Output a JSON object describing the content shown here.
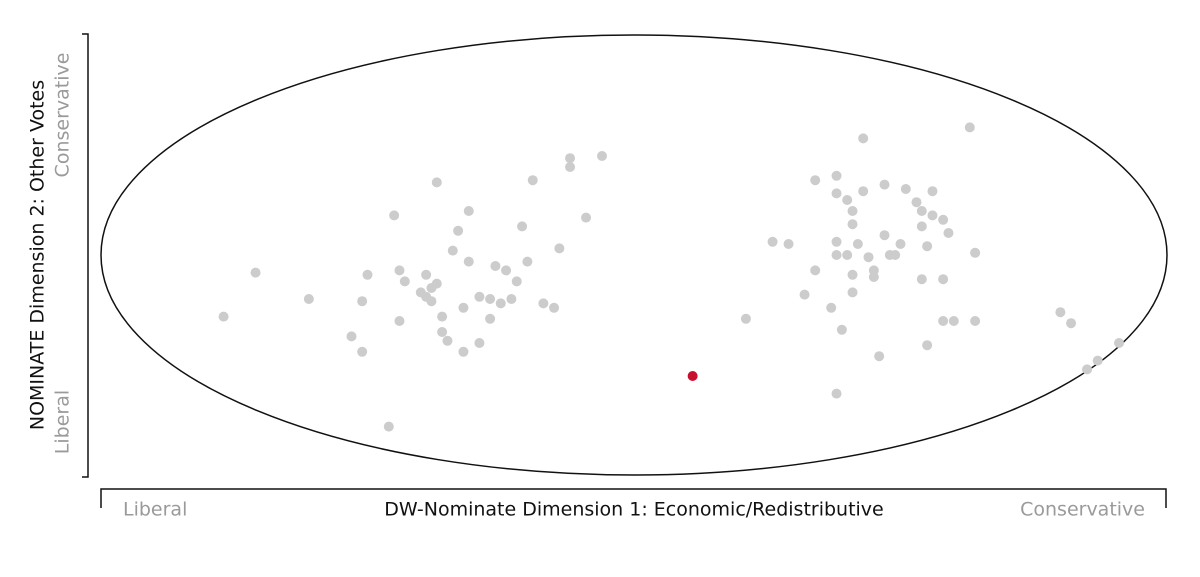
{
  "chart_data": {
    "type": "scatter",
    "x_label": "DW-Nominate Dimension 1: Economic/Redistributive",
    "x_low_label": "Liberal",
    "x_high_label": "Conservative",
    "y_label": "NOMINATE Dimension 2: Other Votes",
    "y_low_label": "Liberal",
    "y_high_label": "Conservative",
    "xlim": [
      -1,
      1
    ],
    "ylim": [
      -1,
      1
    ],
    "series": [
      {
        "color": "#cccccc",
        "x": [
          -0.77,
          -0.71,
          -0.61,
          -0.53,
          -0.51,
          -0.51,
          -0.5,
          -0.46,
          -0.45,
          -0.44,
          -0.44,
          -0.43,
          -0.4,
          -0.39,
          -0.39,
          -0.38,
          -0.37,
          -0.38,
          -0.37,
          -0.36,
          -0.35,
          -0.36,
          -0.34,
          -0.33,
          -0.32,
          -0.32,
          -0.31,
          -0.31,
          -0.29,
          -0.29,
          -0.27,
          -0.27,
          -0.26,
          -0.25,
          -0.24,
          -0.23,
          -0.22,
          -0.21,
          -0.2,
          -0.19,
          -0.17,
          -0.15,
          -0.14,
          -0.12,
          -0.12,
          -0.09,
          -0.06,
          0.21,
          0.26,
          0.29,
          0.32,
          0.34,
          0.34,
          0.38,
          0.38,
          0.37,
          0.38,
          0.38,
          0.39,
          0.4,
          0.4,
          0.41,
          0.41,
          0.41,
          0.41,
          0.42,
          0.43,
          0.43,
          0.44,
          0.45,
          0.45,
          0.46,
          0.47,
          0.47,
          0.48,
          0.49,
          0.5,
          0.51,
          0.53,
          0.54,
          0.54,
          0.54,
          0.55,
          0.55,
          0.56,
          0.56,
          0.58,
          0.58,
          0.58,
          0.59,
          0.6,
          0.63,
          0.64,
          0.64,
          0.38,
          0.8,
          0.82,
          0.85,
          0.87,
          0.91
        ],
        "y": [
          -0.28,
          -0.08,
          -0.2,
          -0.37,
          -0.44,
          -0.21,
          -0.09,
          -0.78,
          0.18,
          -0.3,
          -0.07,
          -0.12,
          -0.17,
          -0.09,
          -0.19,
          -0.15,
          -0.13,
          -0.21,
          0.33,
          -0.35,
          -0.39,
          -0.28,
          0.02,
          0.11,
          -0.44,
          -0.24,
          0.2,
          -0.03,
          -0.19,
          -0.4,
          -0.29,
          -0.2,
          -0.05,
          -0.22,
          -0.07,
          -0.2,
          -0.12,
          0.13,
          -0.03,
          0.34,
          -0.22,
          -0.24,
          0.03,
          0.4,
          0.44,
          0.17,
          0.45,
          -0.29,
          0.06,
          0.05,
          -0.18,
          -0.07,
          0.34,
          0.36,
          0.28,
          -0.24,
          0.06,
          0.0,
          -0.34,
          0.25,
          0.0,
          -0.17,
          0.14,
          0.2,
          -0.09,
          0.05,
          0.29,
          0.53,
          -0.01,
          -0.07,
          -0.1,
          -0.46,
          0.32,
          0.09,
          0.0,
          0.0,
          0.05,
          0.3,
          0.24,
          0.2,
          0.13,
          -0.11,
          -0.41,
          0.04,
          0.29,
          0.18,
          -0.11,
          0.16,
          -0.3,
          0.1,
          -0.3,
          0.58,
          0.01,
          -0.3,
          -0.63,
          -0.26,
          -0.31,
          -0.52,
          -0.48,
          -0.4
        ]
      },
      {
        "color": "#c8102e",
        "x": [
          0.11
        ],
        "y": [
          -0.55
        ]
      }
    ]
  }
}
